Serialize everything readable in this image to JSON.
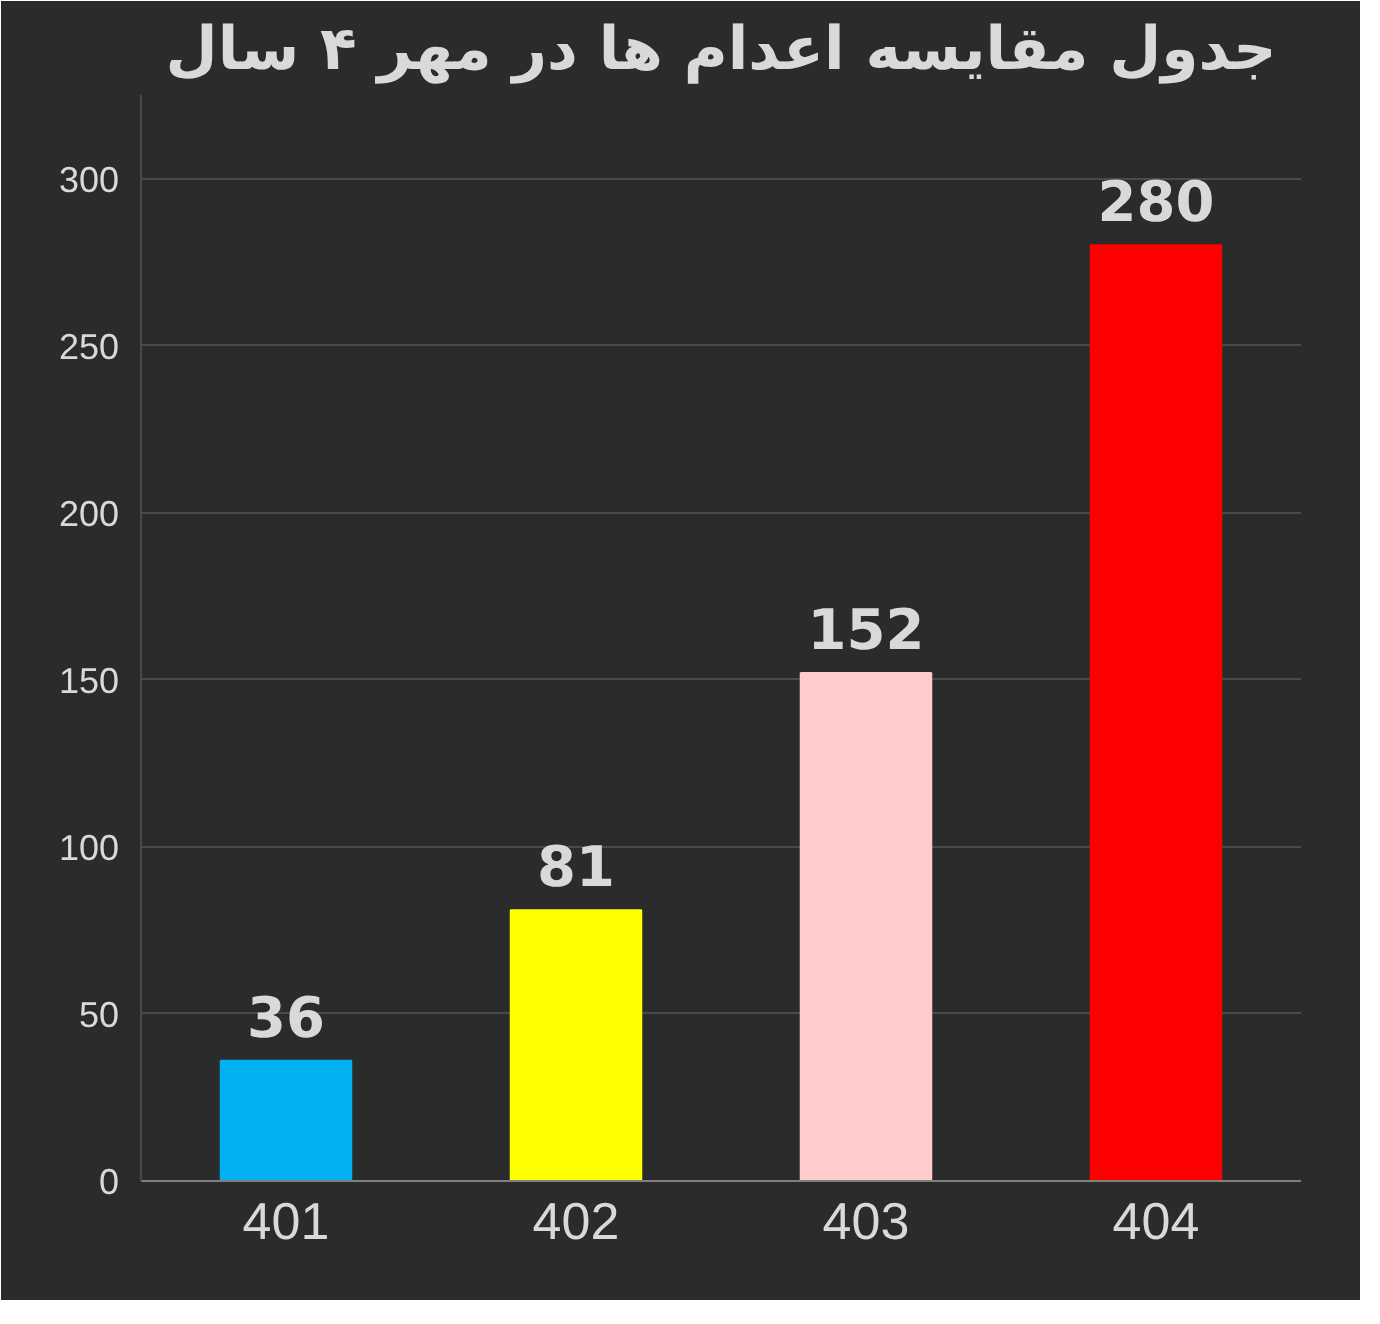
{
  "chart_data": {
    "type": "bar",
    "title": "جدول مقایسه اعدام ها در مهر ۴ سال",
    "categories": [
      "401",
      "402",
      "403",
      "404"
    ],
    "values": [
      36,
      81,
      152,
      280
    ],
    "colors": [
      "#00b0f0",
      "#ffff00",
      "#ffcccc",
      "#ff0000"
    ],
    "ylim": [
      0,
      325
    ],
    "yticks": [
      0,
      50,
      100,
      150,
      200,
      250,
      300
    ],
    "grid": "y",
    "data_labels": true
  }
}
